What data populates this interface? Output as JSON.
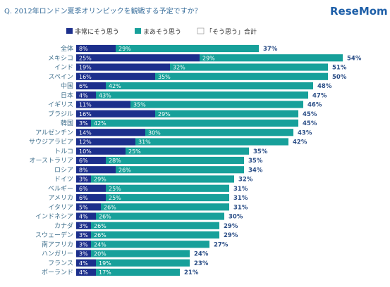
{
  "header": {
    "question": "Q. 2012年ロンドン夏季オリンピックを観戦する予定ですか？",
    "logo": "ReseMom"
  },
  "legend": [
    {
      "label": "非常にそう思う",
      "color": "#1c2f8c"
    },
    {
      "label": "まあそう思う",
      "color": "#17a09a"
    },
    {
      "label": "「そう思う」合計",
      "color": "#ffffff"
    }
  ],
  "chart_data": {
    "type": "bar",
    "orientation": "horizontal",
    "stacked": true,
    "categories": [
      "全体",
      "メキシコ",
      "インド",
      "スペイン",
      "中国",
      "日本",
      "イギリス",
      "ブラジル",
      "韓国",
      "アルゼンチン",
      "サウジアラビア",
      "トルコ",
      "オーストラリア",
      "ロシア",
      "ドイツ",
      "ベルギー",
      "アメリカ",
      "イタリア",
      "インドネシア",
      "カナダ",
      "スウェーデン",
      "南アフリカ",
      "ハンガリー",
      "フランス",
      "ポーランド"
    ],
    "series": [
      {
        "name": "非常にそう思う",
        "color": "#1c2f8c",
        "values": [
          8,
          25,
          19,
          16,
          6,
          4,
          11,
          16,
          3,
          14,
          12,
          10,
          6,
          8,
          3,
          6,
          6,
          5,
          4,
          3,
          3,
          3,
          3,
          4,
          4
        ]
      },
      {
        "name": "まあそう思う",
        "color": "#17a09a",
        "values": [
          29,
          29,
          32,
          35,
          42,
          43,
          35,
          29,
          42,
          30,
          31,
          25,
          28,
          26,
          29,
          25,
          25,
          26,
          26,
          26,
          26,
          24,
          20,
          19,
          17
        ]
      }
    ],
    "totals": [
      37,
      54,
      51,
      50,
      48,
      47,
      46,
      45,
      45,
      43,
      42,
      35,
      35,
      34,
      32,
      31,
      31,
      31,
      30,
      29,
      29,
      27,
      24,
      23,
      21
    ],
    "value_suffix": "%",
    "xlim": [
      0,
      56
    ],
    "grid": false,
    "legend_position": "top"
  }
}
